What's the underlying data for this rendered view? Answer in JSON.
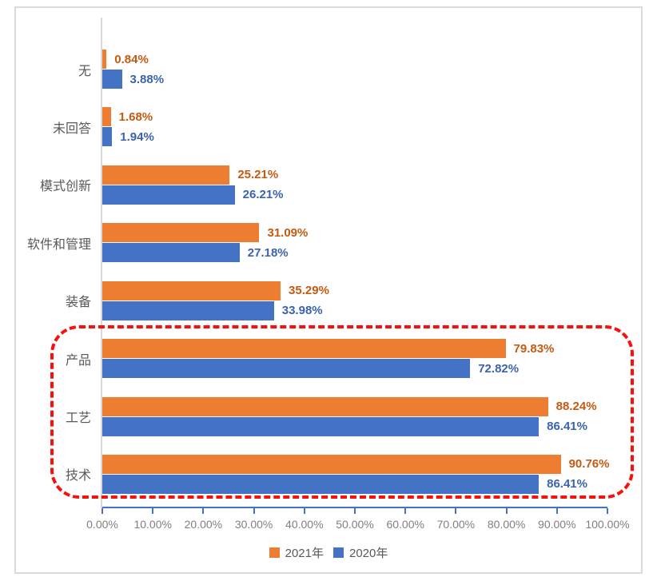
{
  "chart_data": {
    "type": "bar",
    "orientation": "horizontal",
    "title": "",
    "xlabel": "",
    "ylabel": "",
    "grid": false,
    "categories": [
      "无",
      "未回答",
      "模式创新",
      "软件和管理",
      "装备",
      "产品",
      "工艺",
      "技术"
    ],
    "series": [
      {
        "name": "2021年",
        "color": "#ED7D31",
        "label_color": "#C55A11",
        "values": [
          0.84,
          1.68,
          25.21,
          31.09,
          35.29,
          79.83,
          88.24,
          90.76
        ],
        "labels": [
          "0.84%",
          "1.68%",
          "25.21%",
          "31.09%",
          "35.29%",
          "79.83%",
          "88.24%",
          "90.76%"
        ]
      },
      {
        "name": "2020年",
        "color": "#4472C4",
        "label_color": "#3B63AD",
        "values": [
          3.88,
          1.94,
          26.21,
          27.18,
          33.98,
          72.82,
          86.41,
          86.41
        ],
        "labels": [
          "3.88%",
          "1.94%",
          "26.21%",
          "27.18%",
          "33.98%",
          "72.82%",
          "86.41%",
          "86.41%"
        ]
      }
    ],
    "x_axis": {
      "min": 0,
      "max": 100,
      "step": 10,
      "tick_labels": [
        "0.00%",
        "10.00%",
        "20.00%",
        "30.00%",
        "40.00%",
        "50.00%",
        "60.00%",
        "70.00%",
        "80.00%",
        "90.00%",
        "100.00%"
      ],
      "axis_color": "#4472C4",
      "tick_text_color": "#808080"
    },
    "legend": {
      "position": "bottom",
      "entries": [
        "2021年",
        "2020年"
      ]
    },
    "annotation": {
      "type": "dashed-rounded-box",
      "color": "#F8100C",
      "around_categories": [
        "产品",
        "工艺",
        "技术"
      ]
    }
  }
}
